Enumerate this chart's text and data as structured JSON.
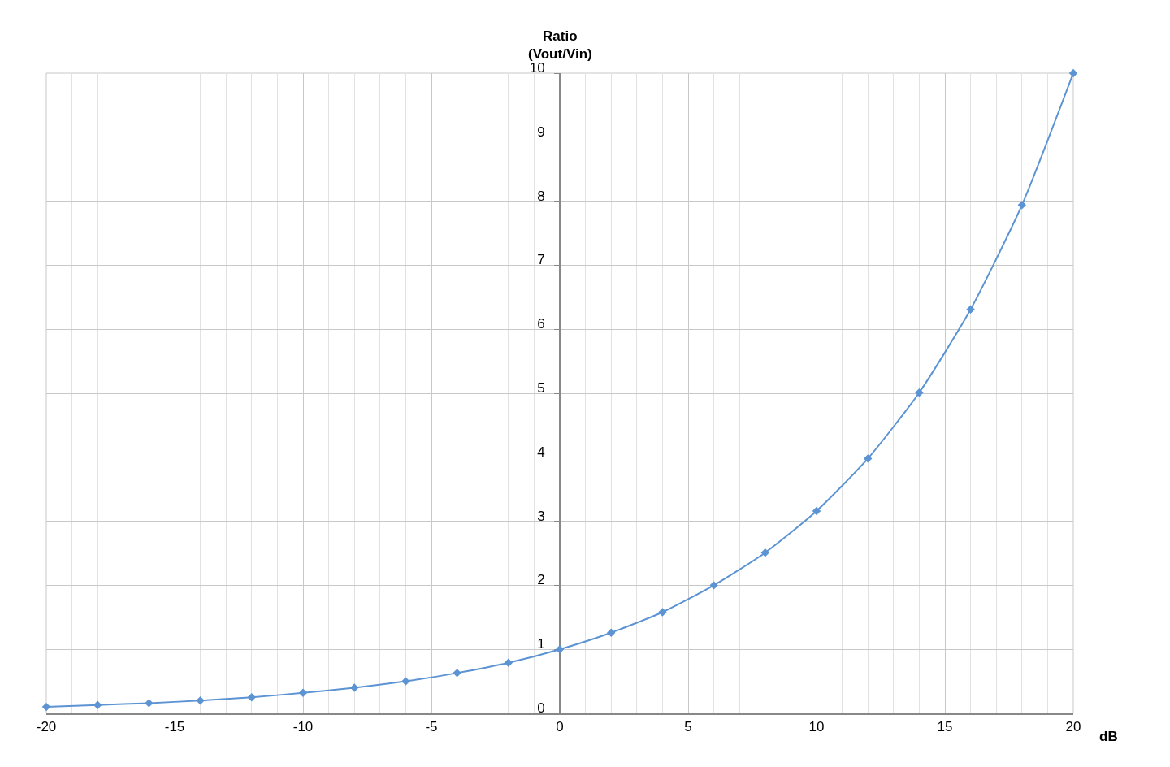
{
  "chart_data": {
    "type": "line",
    "xlabel": "dB",
    "ylabel": "Ratio\n(Vout/Vin)",
    "x": [
      -20,
      -18,
      -16,
      -14,
      -12,
      -10,
      -8,
      -6,
      -4,
      -2,
      0,
      2,
      4,
      6,
      8,
      10,
      12,
      14,
      16,
      18,
      20
    ],
    "series": [
      {
        "color": "#5b93d3",
        "values": [
          0.1,
          0.13,
          0.16,
          0.2,
          0.25,
          0.32,
          0.4,
          0.5,
          0.63,
          0.79,
          1,
          1.26,
          1.58,
          2,
          2.51,
          3.16,
          3.98,
          5.01,
          6.31,
          7.94,
          10
        ]
      }
    ],
    "xlim": [
      -20,
      20
    ],
    "xticks": [
      -20,
      -15,
      -10,
      -5,
      0,
      5,
      10,
      15,
      20
    ],
    "ylim": [
      0,
      10
    ],
    "yticks": [
      0,
      1,
      2,
      3,
      4,
      5,
      6,
      7,
      8,
      9,
      10
    ],
    "grid": true,
    "marker": "diamond",
    "line_style": "solid"
  }
}
